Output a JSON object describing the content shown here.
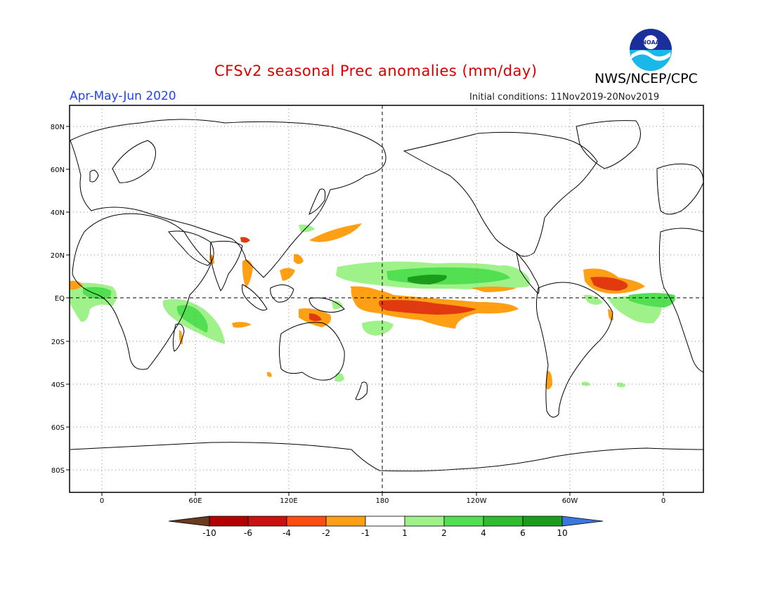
{
  "header": {
    "title": "CFSv2 seasonal Prec anomalies (mm/day)",
    "season": "Apr-May-Jun 2020",
    "initial_conditions": "Initial conditions: 11Nov2019-20Nov2019",
    "agency": "NWS/NCEP/CPC",
    "logo_text": "NOAA"
  },
  "map": {
    "projection": "cylindrical equidistant",
    "lon_labels": [
      "0",
      "60E",
      "120E",
      "180",
      "120W",
      "60W",
      "0"
    ],
    "lat_labels": [
      "80N",
      "60N",
      "40N",
      "20N",
      "EQ",
      "20S",
      "40S",
      "60S",
      "80S"
    ],
    "grid": "dotted",
    "reference_lines": [
      "EQ",
      "180"
    ]
  },
  "colorbar": {
    "labels": [
      "-10",
      "-6",
      "-4",
      "-2",
      "-1",
      "1",
      "2",
      "4",
      "6",
      "10"
    ],
    "colors": [
      "#6b3a1f",
      "#b40000",
      "#cc1010",
      "#ff4c10",
      "#ff9f14",
      "#ffffff",
      "#9ff28a",
      "#52e052",
      "#2fbc2f",
      "#1b9c1b",
      "#3a78e0"
    ]
  },
  "colors": {
    "title": "#dd0000",
    "season": "#2244ee",
    "dry_strong": "#e23a10",
    "dry": "#ff9f14",
    "wet": "#9ff28a",
    "wet_mid": "#52e052",
    "wet_strong": "#1b9c1b"
  }
}
